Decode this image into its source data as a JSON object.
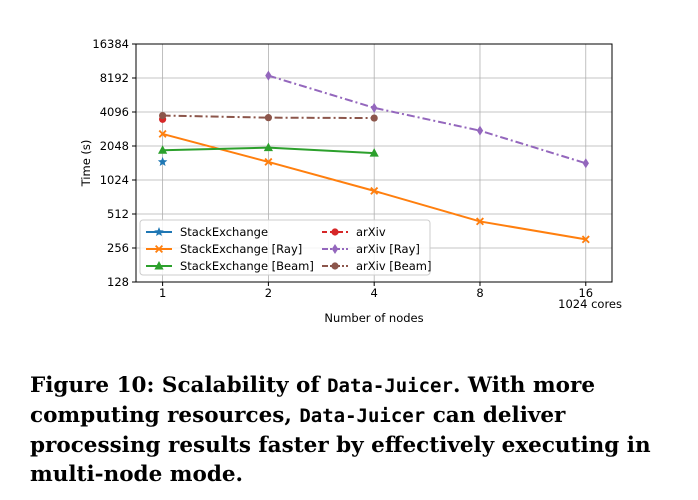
{
  "chart_data": {
    "type": "line",
    "xscale": "log2",
    "yscale": "log2",
    "xlabel": "Number of nodes",
    "ylabel": "Time (s)",
    "x_ticks": [
      1,
      2,
      4,
      8,
      16
    ],
    "x_tick_labels": [
      "1",
      "2",
      "4",
      "8",
      "16"
    ],
    "x_annotation": "1024 cores",
    "y_ticks": [
      128,
      256,
      512,
      1024,
      2048,
      4096,
      8192,
      16384
    ],
    "y_tick_labels": [
      "128",
      "256",
      "512",
      "1024",
      "2048",
      "4096",
      "8192",
      "16384"
    ],
    "xlim": [
      0.84,
      19.0
    ],
    "ylim": [
      128,
      16384
    ],
    "grid": true,
    "legend_position": "lower-left",
    "series": [
      {
        "name": "StackExchange",
        "color": "#1f77b4",
        "marker": "star",
        "linestyle": "solid",
        "x": [
          1
        ],
        "y": [
          1480
        ]
      },
      {
        "name": "StackExchange [Ray]",
        "color": "#ff7f0e",
        "marker": "x",
        "linestyle": "solid",
        "x": [
          1,
          2,
          4,
          8,
          16
        ],
        "y": [
          2620,
          1480,
          820,
          440,
          305
        ]
      },
      {
        "name": "StackExchange [Beam]",
        "color": "#2ca02c",
        "marker": "triangle",
        "linestyle": "solid",
        "x": [
          1,
          2,
          4
        ],
        "y": [
          1880,
          1980,
          1770
        ]
      },
      {
        "name": "arXiv",
        "color": "#d62728",
        "marker": "circle",
        "linestyle": "dashed",
        "x": [
          1
        ],
        "y": [
          3530
        ]
      },
      {
        "name": "arXiv [Ray]",
        "color": "#9467bd",
        "marker": "diamond",
        "linestyle": "dashdot",
        "x": [
          2,
          4,
          8,
          16
        ],
        "y": [
          8600,
          4460,
          2800,
          1440
        ]
      },
      {
        "name": "arXiv [Beam]",
        "color": "#8c564b",
        "marker": "circle",
        "linestyle": "dashdot",
        "x": [
          1,
          2,
          4
        ],
        "y": [
          3810,
          3650,
          3620
        ]
      }
    ]
  },
  "caption": {
    "prefix": "Figure 10: Scalability of ",
    "name1": "Data-Juicer",
    "middle1": ". With more computing resources, ",
    "name2": "Data-Juicer",
    "suffix": " can deliver processing results faster by effectively executing in multi-node mode."
  }
}
